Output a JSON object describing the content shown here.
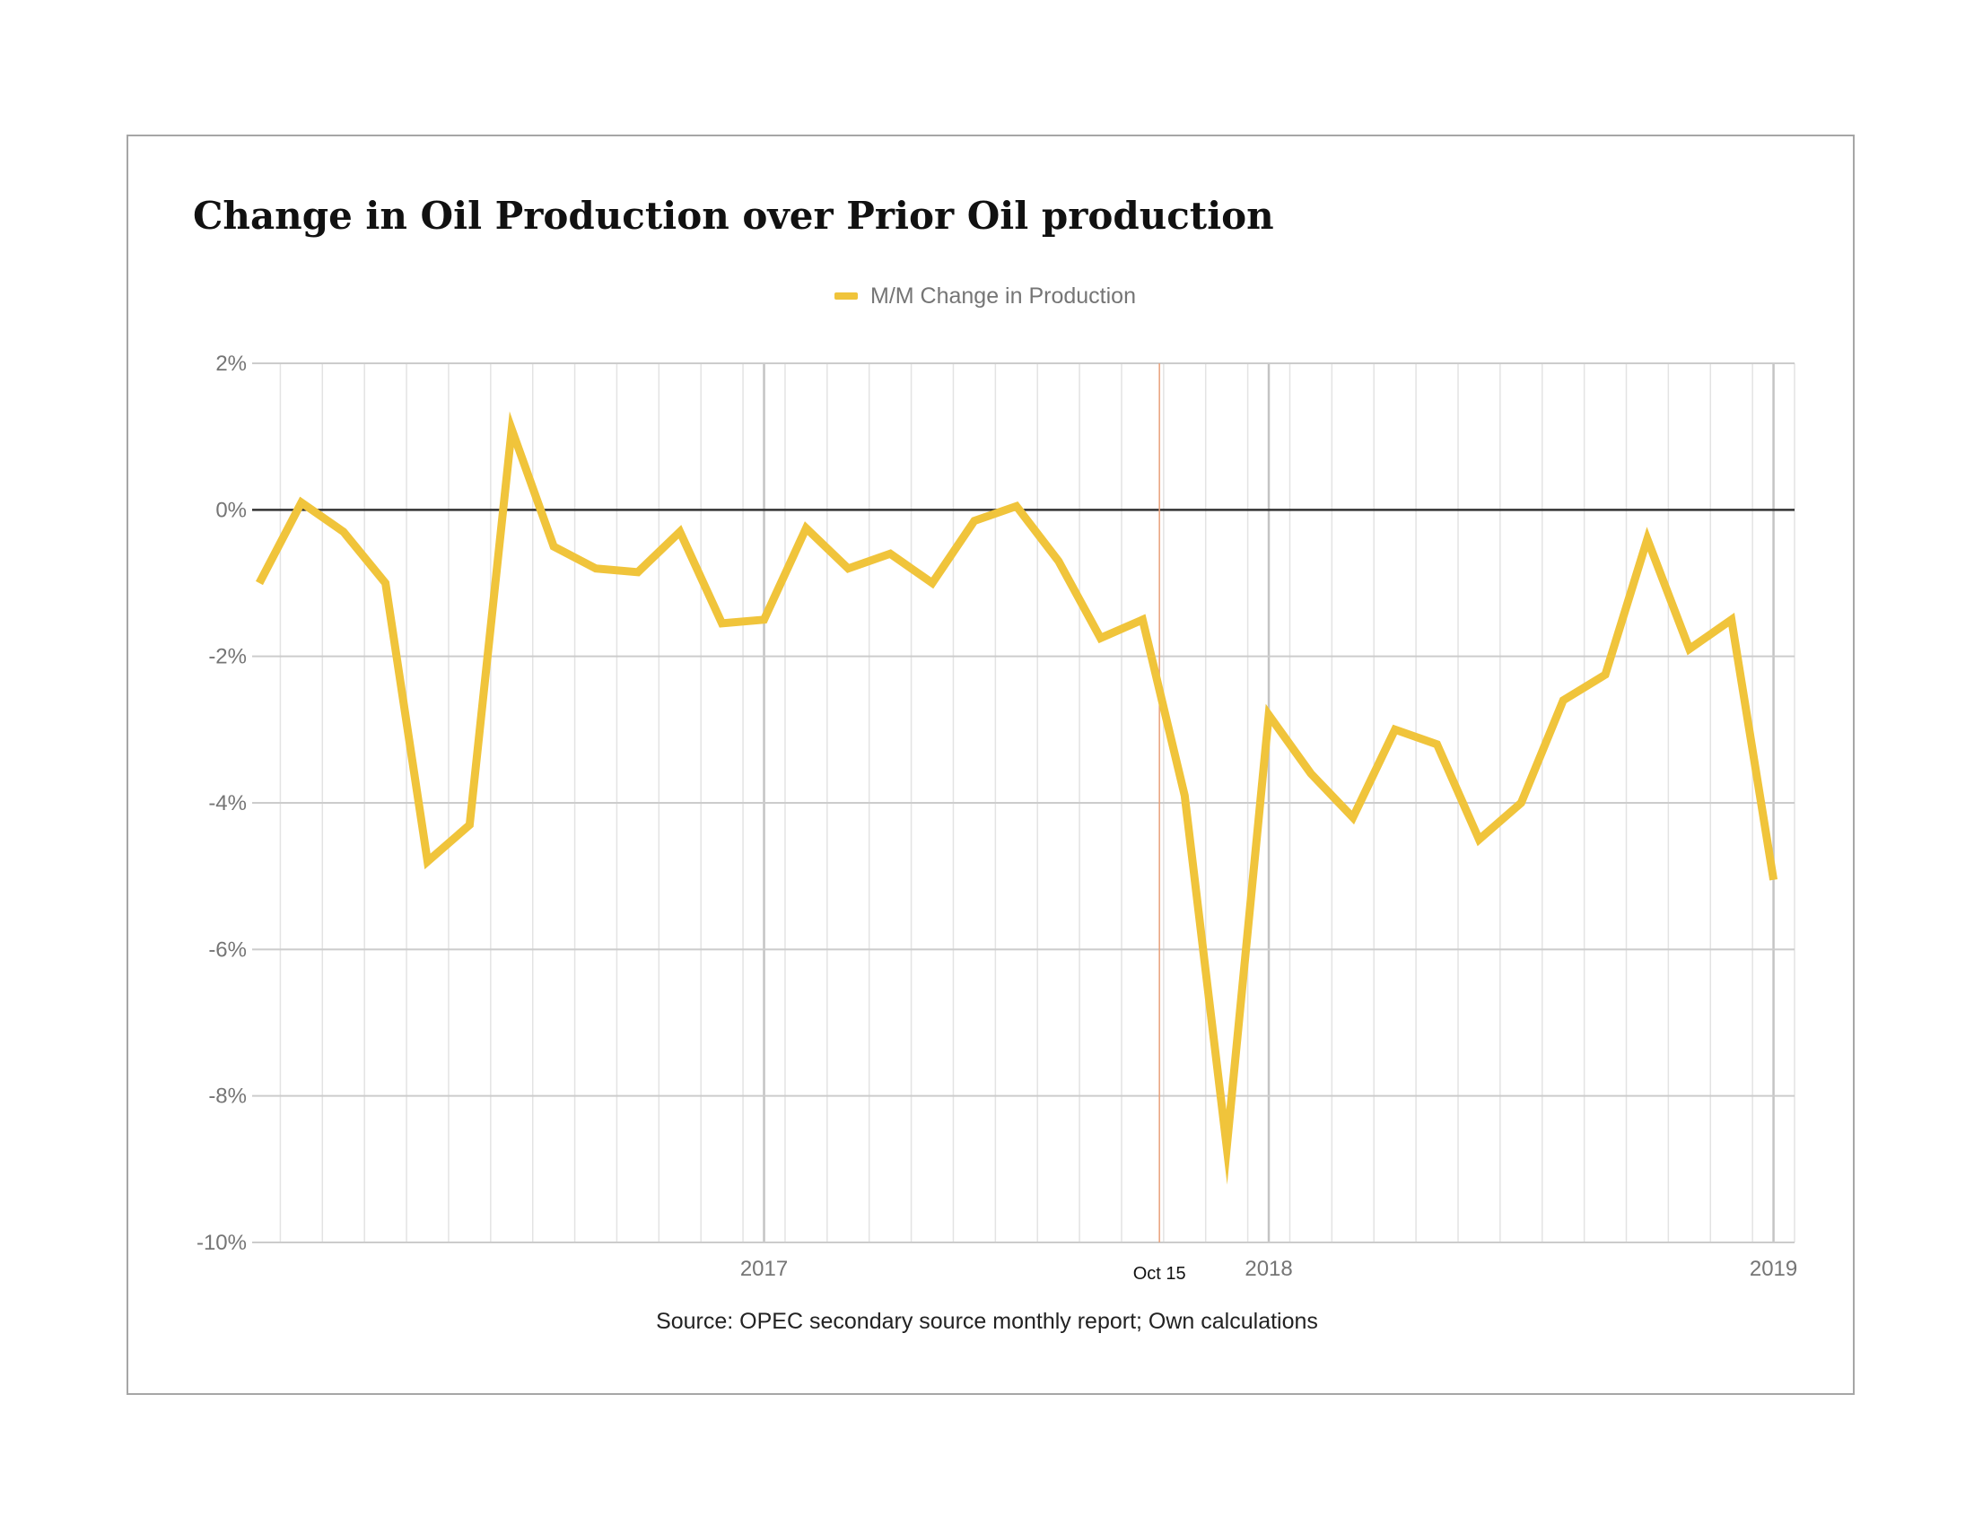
{
  "chart_data": {
    "type": "line",
    "title": "Change in Oil Production over Prior Oil production",
    "xlabel": "",
    "ylabel": "",
    "source": "Source: OPEC secondary source monthly report; Own calculations",
    "legend_position": "top-center",
    "grid": true,
    "y_ticks": [
      2,
      0,
      -2,
      -4,
      -6,
      -8,
      -10
    ],
    "y_tick_suffix": "%",
    "ylim": [
      -10,
      2
    ],
    "xlim": [
      -0.5,
      36
    ],
    "x_tick_labels": [
      {
        "label": "2017",
        "x": 11.5
      },
      {
        "label": "2018",
        "x": 23.5
      },
      {
        "label": "2019",
        "x": 35.5
      }
    ],
    "annotation": {
      "label": "Oct 15",
      "x": 20.9
    },
    "series": [
      {
        "name": "M/M Change in Production",
        "color": "#f0c43b",
        "x": [
          -0.5,
          0.5,
          1.5,
          2.5,
          3.5,
          4.5,
          5.5,
          6.5,
          7.5,
          8.5,
          9.5,
          10.5,
          11.5,
          12.5,
          13.5,
          14.5,
          15.5,
          16.5,
          17.5,
          18.5,
          19.5,
          20.5,
          21.5,
          22.5,
          23.5,
          24.5,
          25.5,
          26.5,
          27.5,
          28.5,
          29.5,
          30.5,
          31.5,
          32.5,
          33.5,
          34.5,
          35.5
        ],
        "values": [
          -1.0,
          0.1,
          -0.3,
          -1.0,
          -4.8,
          -4.3,
          1.1,
          -0.5,
          -0.8,
          -0.85,
          -0.3,
          -1.55,
          -1.5,
          -0.25,
          -0.8,
          -0.6,
          -1.0,
          -0.15,
          0.05,
          -0.7,
          -1.75,
          -1.5,
          -3.9,
          -8.7,
          -2.8,
          -3.6,
          -4.2,
          -3.0,
          -3.2,
          -4.5,
          -4.0,
          -2.6,
          -2.25,
          -0.4,
          -1.9,
          -1.5,
          -5.05
        ]
      }
    ]
  }
}
